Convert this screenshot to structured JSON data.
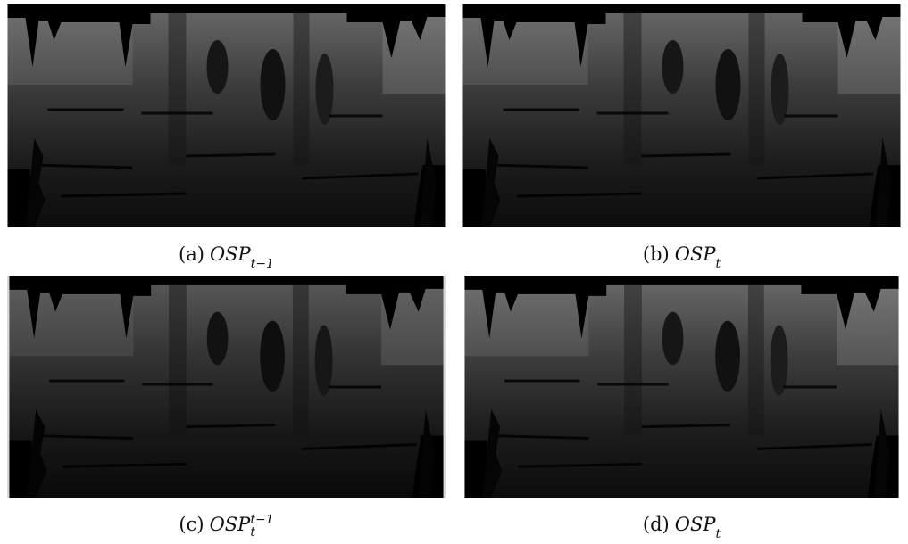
{
  "figure": {
    "panels": [
      {
        "label": "(a)",
        "symbol": "OSP",
        "subscript": "t−1"
      },
      {
        "label": "(b)",
        "symbol": "OSP",
        "subscript": "t"
      },
      {
        "label": "(c)",
        "symbol": "OSP",
        "subscript": "t",
        "superscript": "t−1"
      },
      {
        "label": "(d)",
        "symbol": "OSP",
        "subscript": "t"
      }
    ]
  }
}
